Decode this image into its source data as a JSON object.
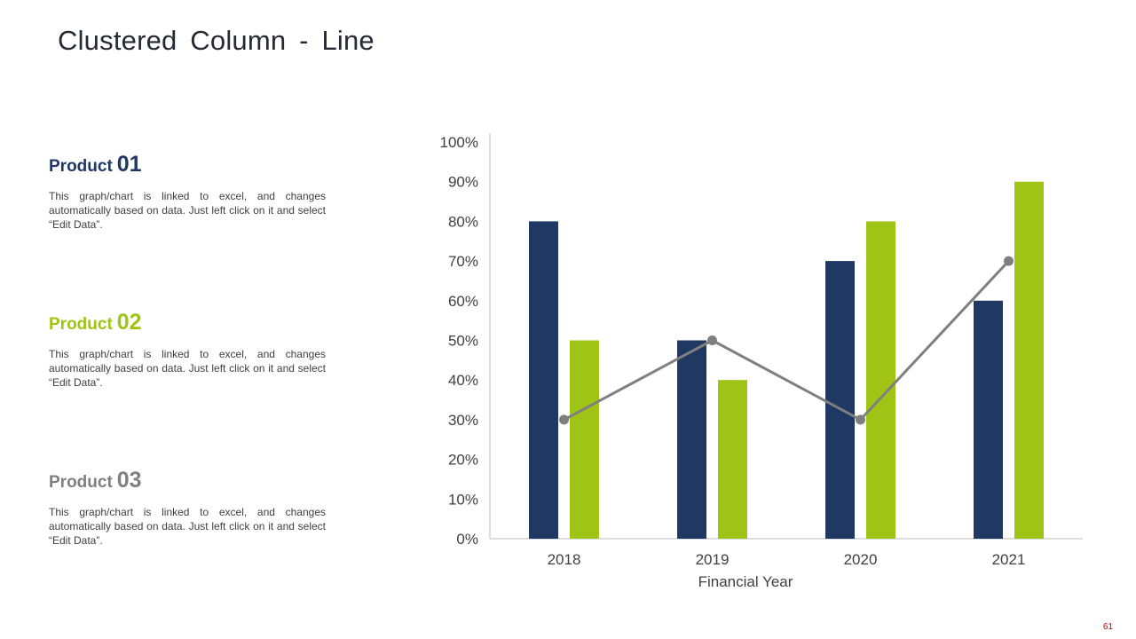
{
  "slide": {
    "title": "Clustered Column - Line",
    "page_number": "61",
    "page_number_color": "#C00000"
  },
  "products": [
    {
      "label": "Product",
      "number": "01",
      "color": "#1F3864",
      "description": "This graph/chart is linked to excel, and changes automatically based on data. Just left click on it and select “Edit Data”."
    },
    {
      "label": "Product",
      "number": "02",
      "color": "#A0C416",
      "description": "This graph/chart is linked to excel, and changes automatically based on data. Just left click on it and select “Edit Data”."
    },
    {
      "label": "Product",
      "number": "03",
      "color": "#7F7F7F",
      "description": "This graph/chart is linked to excel, and changes automatically based on data. Just left click on it and select “Edit Data”."
    }
  ],
  "chart_data": {
    "type": "bar",
    "subtype": "clustered-column-with-line",
    "categories": [
      "2018",
      "2019",
      "2020",
      "2021"
    ],
    "series": [
      {
        "name": "Product 01",
        "type": "bar",
        "color": "#1F3864",
        "values": [
          80,
          50,
          70,
          60
        ]
      },
      {
        "name": "Product 02",
        "type": "bar",
        "color": "#A0C416",
        "values": [
          50,
          40,
          80,
          90
        ]
      },
      {
        "name": "Product 03",
        "type": "line",
        "color": "#7F7F7F",
        "values": [
          30,
          50,
          30,
          70
        ]
      }
    ],
    "title": "",
    "xlabel": "Financial Year",
    "ylabel": "",
    "ylim": [
      0,
      100
    ],
    "ytick_step": 10,
    "ytick_suffix": "%",
    "grid": false,
    "legend": false,
    "axis_color": "#BDBDBD"
  }
}
